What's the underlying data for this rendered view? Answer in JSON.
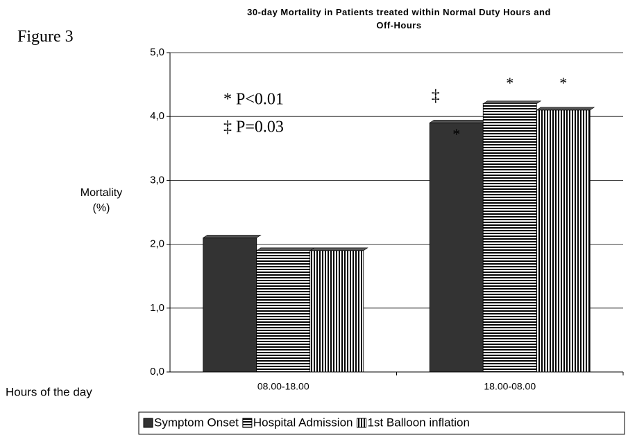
{
  "figure_label": "Figure 3",
  "chart_data": {
    "type": "bar",
    "title": "30-day Mortality in Patients treated within Normal Duty Hours and Off-Hours",
    "y_label": "Mortality (%)",
    "x_label": "Hours of the day",
    "categories": [
      "08.00-18.00",
      "18.00-08.00"
    ],
    "series": [
      {
        "name": "Symptom Onset",
        "color": "#333333",
        "pattern": "solid",
        "values": [
          2.1,
          3.9
        ]
      },
      {
        "name": "Hospital Admission",
        "color": "#000000",
        "pattern": "horizontal-stripes",
        "values": [
          1.9,
          4.2
        ]
      },
      {
        "name": "1st Balloon inflation",
        "color": "#000000",
        "pattern": "vertical-stripes",
        "values": [
          1.9,
          4.1
        ]
      }
    ],
    "ylim": [
      0,
      5
    ],
    "yticks": [
      {
        "value": 0,
        "label": "0,0"
      },
      {
        "value": 1,
        "label": "1,0"
      },
      {
        "value": 2,
        "label": "2,0"
      },
      {
        "value": 3,
        "label": "3,0"
      },
      {
        "value": 4,
        "label": "4,0"
      },
      {
        "value": 5,
        "label": "5,0"
      }
    ],
    "grid": true,
    "legend": "bottom",
    "annotations": [
      "* P<0.01",
      "‡ P=0.03",
      "‡",
      "*",
      "*",
      "*"
    ]
  }
}
